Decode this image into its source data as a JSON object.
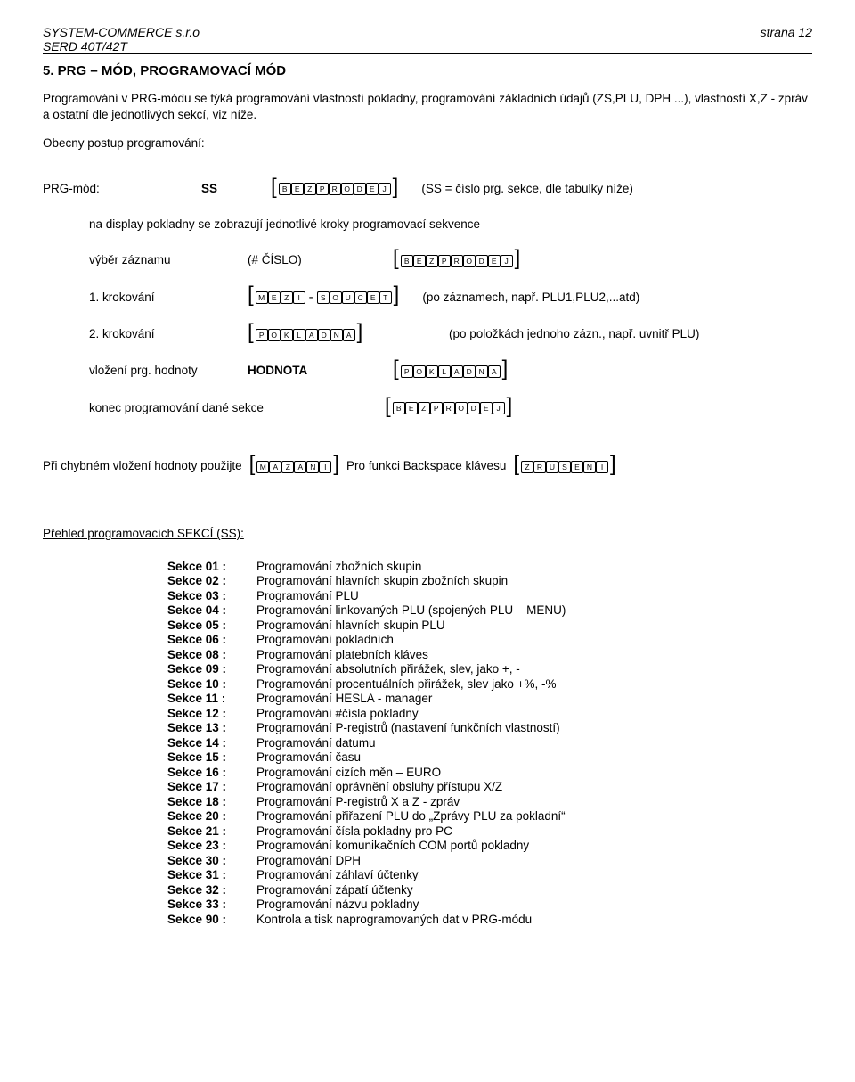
{
  "header": {
    "company": "SYSTEM-COMMERCE s.r.o",
    "page": "strana 12",
    "model": "SERD 40T/42T"
  },
  "section": {
    "title": "5. PRG – MÓD, PROGRAMOVACÍ MÓD",
    "intro": "Programování v PRG-módu se týká programování vlastností pokladny, programování základních údajů (ZS,PLU, DPH ...), vlastností X,Z - zpráv a ostatní dle jednotlivých sekcí, viz níže.",
    "obecny": "Obecny postup programování:"
  },
  "lines": {
    "prgmod_label": "PRG-mód:",
    "ss": "SS",
    "ss_after": "(SS = číslo prg. sekce, dle tabulky níže)",
    "nadisplay": "na display pokladny se zobrazují jednotlivé kroky programovací sekvence",
    "vyber_label": "výběr záznamu",
    "vyber_val": "(# ČÍSLO)",
    "krok1_label": "1. krokování",
    "krok1_after": "(po záznamech, např. PLU1,PLU2,...atd)",
    "krok2_label": "2. krokování",
    "krok2_after": "(po položkách jednoho zázn., např. uvnitř PLU)",
    "vlozeni_label": "vložení prg. hodnoty",
    "hodnota": "HODNOTA",
    "konec_label": "konec programování dané sekce"
  },
  "hint": {
    "pre": "Při chybném vložení hodnoty použijte",
    "mid": "Pro funkci Backspace klávesu"
  },
  "keys": {
    "bezprodej": [
      "B",
      "E",
      "Z",
      "P",
      "R",
      "O",
      "D",
      "E",
      "J"
    ],
    "mezi": [
      "M",
      "E",
      "Z",
      "I"
    ],
    "soucet": [
      "S",
      "O",
      "U",
      "C",
      "E",
      "T"
    ],
    "pokladna": [
      "P",
      "O",
      "K",
      "L",
      "A",
      "D",
      "N",
      "A"
    ],
    "mazani": [
      "M",
      "A",
      "Z",
      "A",
      "N",
      "I"
    ],
    "zruseni": [
      "Z",
      "R",
      "U",
      "S",
      "E",
      "N",
      "I"
    ]
  },
  "sekce": {
    "title": "Přehled programovacích SEKCÍ (SS):",
    "items": [
      {
        "label": "Sekce 01 :",
        "desc": "Programování zbožních skupin"
      },
      {
        "label": "Sekce 02 :",
        "desc": "Programování hlavních skupin zbožních skupin"
      },
      {
        "label": "Sekce 03 :",
        "desc": "Programování PLU"
      },
      {
        "label": "Sekce 04 :",
        "desc": "Programování linkovaných PLU (spojených PLU – MENU)"
      },
      {
        "label": "Sekce 05 :",
        "desc": "Programování hlavních skupin PLU"
      },
      {
        "label": "Sekce 06 :",
        "desc": "Programování pokladních"
      },
      {
        "label": "Sekce 08 :",
        "desc": "Programování platebních kláves"
      },
      {
        "label": "Sekce 09 :",
        "desc": "Programování absolutních přirážek, slev, jako +, -"
      },
      {
        "label": "Sekce 10 :",
        "desc": "Programování procentuálních přirážek, slev jako +%, -%"
      },
      {
        "label": "Sekce 11 :",
        "desc": "Programování HESLA - manager"
      },
      {
        "label": "Sekce 12 :",
        "desc": "Programování  #čísla pokladny"
      },
      {
        "label": "Sekce 13 :",
        "desc": "Programování P-registrů (nastavení funkčních vlastností)"
      },
      {
        "label": "Sekce 14 :",
        "desc": "Programování datumu"
      },
      {
        "label": "Sekce 15 :",
        "desc": "Programování času"
      },
      {
        "label": "Sekce 16 :",
        "desc": "Programování cizích měn – EURO"
      },
      {
        "label": "Sekce 17 :",
        "desc": "Programování oprávnění obsluhy přístupu X/Z"
      },
      {
        "label": "Sekce 18 :",
        "desc": "Programování P-registrů X a Z - zpráv"
      },
      {
        "label": "Sekce 20 :",
        "desc": "Programování přiřazení PLU do „Zprávy PLU za pokladní“"
      },
      {
        "label": "Sekce 21 :",
        "desc": "Programování čísla pokladny pro PC"
      },
      {
        "label": "Sekce 23 :",
        "desc": "Programování komunikačních COM portů pokladny"
      },
      {
        "label": "Sekce 30 :",
        "desc": "Programování DPH"
      },
      {
        "label": "Sekce 31 :",
        "desc": "Programování záhlaví účtenky"
      },
      {
        "label": "Sekce 32 :",
        "desc": "Programování zápatí účtenky"
      },
      {
        "label": "Sekce 33 :",
        "desc": "Programování názvu pokladny"
      },
      {
        "label": "Sekce 90 :",
        "desc": "Kontrola a tisk naprogramovaných dat v PRG-módu"
      }
    ]
  }
}
